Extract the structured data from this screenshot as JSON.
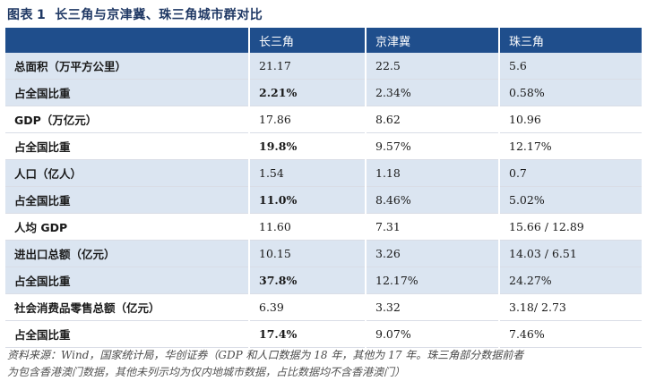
{
  "title": {
    "prefix": "图表",
    "number": "1",
    "text": "长三角与京津冀、珠三角城市群对比"
  },
  "table": {
    "headers": [
      "",
      "长三角",
      "京津冀",
      "珠三角"
    ],
    "rows": [
      {
        "label": "总面积（万平方公里）",
        "values": [
          "21.17",
          "22.5",
          "5.6"
        ],
        "shade": true,
        "bold_first": false
      },
      {
        "label": "占全国比重",
        "values": [
          "2.21%",
          "2.34%",
          "0.58%"
        ],
        "shade": true,
        "bold_first": true
      },
      {
        "label": "GDP（万亿元）",
        "values": [
          "17.86",
          "8.62",
          "10.96"
        ],
        "shade": false,
        "bold_first": false
      },
      {
        "label": "占全国比重",
        "values": [
          "19.8%",
          "9.57%",
          "12.17%"
        ],
        "shade": false,
        "bold_first": true
      },
      {
        "label": "人口（亿人）",
        "values": [
          "1.54",
          "1.18",
          "0.7"
        ],
        "shade": true,
        "bold_first": false
      },
      {
        "label": "占全国比重",
        "values": [
          "11.0%",
          "8.46%",
          "5.02%"
        ],
        "shade": true,
        "bold_first": true
      },
      {
        "label": "人均 GDP",
        "values": [
          "11.60",
          "7.31",
          "15.66 / 12.89"
        ],
        "shade": false,
        "bold_first": false
      },
      {
        "label": "进出口总额（亿元）",
        "values": [
          "10.15",
          "3.26",
          "14.03 / 6.51"
        ],
        "shade": true,
        "bold_first": false
      },
      {
        "label": "占全国比重",
        "values": [
          "37.8%",
          "12.17%",
          "24.27%"
        ],
        "shade": true,
        "bold_first": true
      },
      {
        "label": "社会消费品零售总额（亿元）",
        "values": [
          "6.39",
          "3.32",
          "3.18/ 2.73"
        ],
        "shade": false,
        "bold_first": false
      },
      {
        "label": "占全国比重",
        "values": [
          "17.4%",
          "9.07%",
          "7.46%"
        ],
        "shade": false,
        "bold_first": true
      }
    ]
  },
  "source": {
    "line1": "资料来源：Wind，国家统计局，华创证券（GDP 和人口数据为 18 年，其他为 17 年。珠三角部分数据前者",
    "line2": "为包含香港澳门数据，其他未列示均为仅内地城市数据，占比数据均不含香港澳门）"
  }
}
